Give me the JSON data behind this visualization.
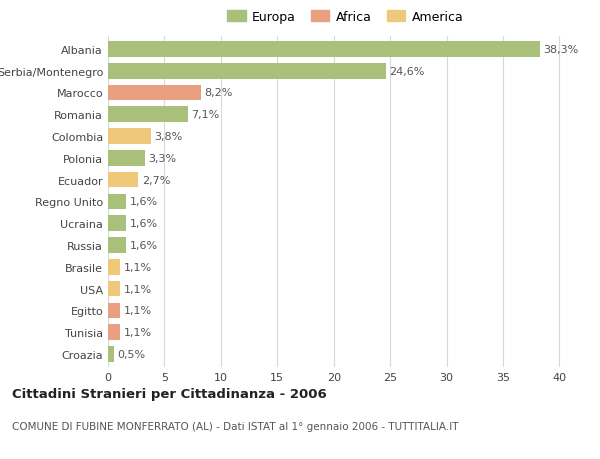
{
  "countries": [
    "Albania",
    "Serbia/Montenegro",
    "Marocco",
    "Romania",
    "Colombia",
    "Polonia",
    "Ecuador",
    "Regno Unito",
    "Ucraina",
    "Russia",
    "Brasile",
    "USA",
    "Egitto",
    "Tunisia",
    "Croazia"
  ],
  "values": [
    38.3,
    24.6,
    8.2,
    7.1,
    3.8,
    3.3,
    2.7,
    1.6,
    1.6,
    1.6,
    1.1,
    1.1,
    1.1,
    1.1,
    0.5
  ],
  "labels": [
    "38,3%",
    "24,6%",
    "8,2%",
    "7,1%",
    "3,8%",
    "3,3%",
    "2,7%",
    "1,6%",
    "1,6%",
    "1,6%",
    "1,1%",
    "1,1%",
    "1,1%",
    "1,1%",
    "0,5%"
  ],
  "categories": [
    "Europa",
    "Africa",
    "America"
  ],
  "bar_colors": [
    "#a8c07a",
    "#a8c07a",
    "#e8a080",
    "#a8c07a",
    "#f0c87a",
    "#a8c07a",
    "#f0c87a",
    "#a8c07a",
    "#a8c07a",
    "#a8c07a",
    "#f0c87a",
    "#f0c87a",
    "#e8a080",
    "#e8a080",
    "#a8c07a"
  ],
  "legend_colors": [
    "#a8c07a",
    "#e8a080",
    "#f0c87a"
  ],
  "title": "Cittadini Stranieri per Cittadinanza - 2006",
  "subtitle": "COMUNE DI FUBINE MONFERRATO (AL) - Dati ISTAT al 1° gennaio 2006 - TUTTITALIA.IT",
  "xlim": [
    0,
    42
  ],
  "xticks": [
    0,
    5,
    10,
    15,
    20,
    25,
    30,
    35,
    40
  ],
  "background_color": "#ffffff",
  "grid_color": "#d8d8d8",
  "bar_height": 0.72,
  "label_fontsize": 8.0,
  "tick_label_fontsize": 8.0,
  "legend_fontsize": 9.0
}
